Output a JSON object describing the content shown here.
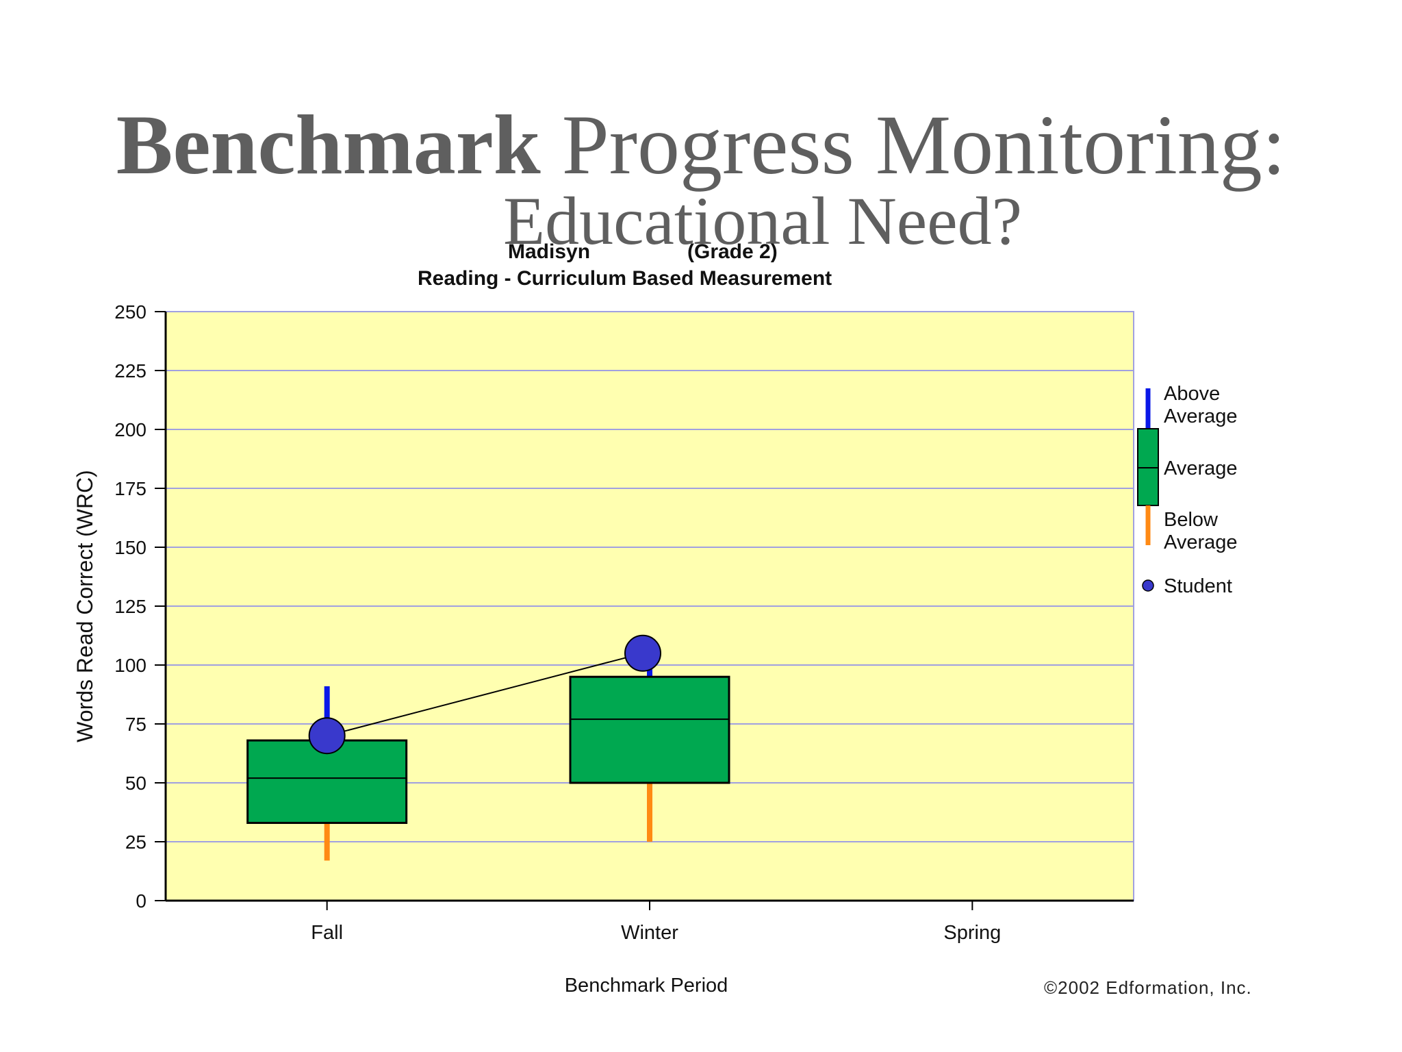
{
  "slide": {
    "title_bold": "Benchmark",
    "title_rest": "Progress Monitoring:",
    "subtitle": "Educational Need?"
  },
  "chart_data": {
    "type": "box",
    "student_name": "Madisyn",
    "grade": "(Grade 2)",
    "title": "Reading - Curriculum Based Measurement",
    "xlabel": "Benchmark Period",
    "ylabel": "Words Read Correct (WRC)",
    "ylim": [
      0,
      250
    ],
    "yticks": [
      0,
      25,
      50,
      75,
      100,
      125,
      150,
      175,
      200,
      225,
      250
    ],
    "grid": true,
    "categories": [
      "Fall",
      "Winter",
      "Spring"
    ],
    "boxes": [
      {
        "period": "Fall",
        "below_min": 17,
        "q1": 33,
        "median": 52,
        "q3": 68,
        "above_max": 91
      },
      {
        "period": "Winter",
        "below_min": 25,
        "q1": 50,
        "median": 77,
        "q3": 95,
        "above_max": 100
      }
    ],
    "student": [
      {
        "period": "Fall",
        "value": 70
      },
      {
        "period": "Winter",
        "value": 105
      }
    ],
    "legend": {
      "placement": "right",
      "above": "Above Average",
      "average": "Average",
      "below": "Below Average",
      "student": "Student"
    },
    "colors": {
      "plot_bg": "#ffffb0",
      "grid": "#a0a0e0",
      "box": "#00a850",
      "above": "#0a18e8",
      "below": "#ff8a14",
      "student": "#3939cc"
    },
    "copyright": "©2002 Edformation, Inc."
  }
}
